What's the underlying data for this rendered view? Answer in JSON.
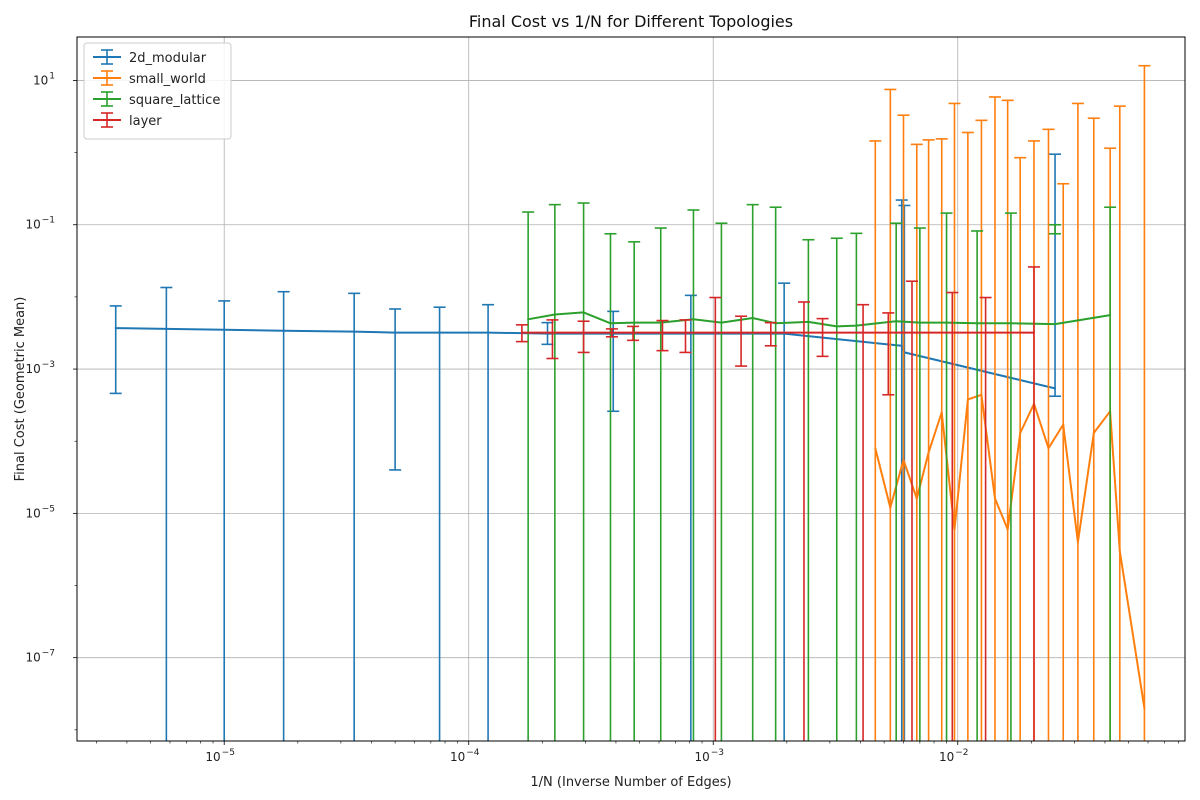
{
  "chart_data": {
    "type": "line",
    "title": "Final Cost vs 1/N for Different Topologies",
    "xlabel": "1/N (Inverse Number of Edges)",
    "ylabel": "Final Cost (Geometric Mean)",
    "xscale": "log",
    "yscale": "log",
    "xlim": [
      2.5e-06,
      0.085
    ],
    "ylim": [
      7e-09,
      40
    ],
    "grid": true,
    "legend_position": "top-left",
    "x_ticks": [
      {
        "value": 1e-05,
        "base": "10",
        "exp": "−5"
      },
      {
        "value": 0.0001,
        "base": "10",
        "exp": "−4"
      },
      {
        "value": 0.001,
        "base": "10",
        "exp": "−3"
      },
      {
        "value": 0.01,
        "base": "10",
        "exp": "−2"
      }
    ],
    "y_ticks": [
      {
        "value": 1e-07,
        "base": "10",
        "exp": "−7"
      },
      {
        "value": 1e-05,
        "base": "10",
        "exp": "−5"
      },
      {
        "value": 0.001,
        "base": "10",
        "exp": "−3"
      },
      {
        "value": 0.1,
        "base": "10",
        "exp": "−1"
      },
      {
        "value": 10,
        "base": "10",
        "exp": "1"
      }
    ],
    "series": [
      {
        "name": "2d_modular",
        "color": "#1f77b4",
        "points": [
          {
            "x": 3.6e-06,
            "y": 0.0037,
            "lo": 0.00046,
            "hi": 0.0075
          },
          {
            "x": 5.8e-06,
            "y": 0.0036,
            "lo": 5e-09,
            "hi": 0.0135
          },
          {
            "x": 1e-05,
            "y": 0.0035,
            "lo": 5e-09,
            "hi": 0.0088
          },
          {
            "x": 1.75e-05,
            "y": 0.0034,
            "lo": 5e-09,
            "hi": 0.0118
          },
          {
            "x": 3.4e-05,
            "y": 0.0033,
            "lo": 5e-09,
            "hi": 0.0112
          },
          {
            "x": 5e-05,
            "y": 0.0032,
            "lo": 4e-05,
            "hi": 0.0068
          },
          {
            "x": 7.6e-05,
            "y": 0.0032,
            "lo": 5e-09,
            "hi": 0.0072
          },
          {
            "x": 0.00012,
            "y": 0.0032,
            "lo": 5e-09,
            "hi": 0.0078
          },
          {
            "x": 0.00021,
            "y": 0.0031,
            "lo": 0.0022,
            "hi": 0.0044
          },
          {
            "x": 0.00039,
            "y": 0.0031,
            "lo": 0.00026,
            "hi": 0.0063
          },
          {
            "x": 0.00081,
            "y": 0.0031,
            "lo": 5e-09,
            "hi": 0.0105
          },
          {
            "x": 0.00195,
            "y": 0.0031,
            "lo": 5e-09,
            "hi": 0.0155
          },
          {
            "x": 0.0059,
            "y": 0.0021,
            "lo": 5e-09,
            "hi": 0.22
          },
          {
            "x": 0.00605,
            "y": 0.0017,
            "lo": 5e-09,
            "hi": 0.185
          },
          {
            "x": 0.025,
            "y": 0.00054,
            "lo": 0.00042,
            "hi": 0.95
          }
        ]
      },
      {
        "name": "small_world",
        "color": "#ff7f0e",
        "points": [
          {
            "x": 0.0046,
            "y": 8e-05,
            "lo": 5e-09,
            "hi": 1.45
          },
          {
            "x": 0.0053,
            "y": 1.2e-05,
            "lo": 5e-09,
            "hi": 7.5
          },
          {
            "x": 0.006,
            "y": 5.5e-05,
            "lo": 5e-09,
            "hi": 3.3
          },
          {
            "x": 0.0068,
            "y": 1.6e-05,
            "lo": 5e-09,
            "hi": 1.3
          },
          {
            "x": 0.0076,
            "y": 7e-05,
            "lo": 5e-09,
            "hi": 1.5
          },
          {
            "x": 0.0086,
            "y": 0.00025,
            "lo": 5e-09,
            "hi": 1.55
          },
          {
            "x": 0.0097,
            "y": 6e-06,
            "lo": 5e-09,
            "hi": 4.8
          },
          {
            "x": 0.011,
            "y": 0.00038,
            "lo": 5e-09,
            "hi": 1.9
          },
          {
            "x": 0.0125,
            "y": 0.00044,
            "lo": 5e-09,
            "hi": 2.8
          },
          {
            "x": 0.0142,
            "y": 1.6e-05,
            "lo": 5e-09,
            "hi": 5.9
          },
          {
            "x": 0.016,
            "y": 6e-06,
            "lo": 5e-09,
            "hi": 5.3
          },
          {
            "x": 0.018,
            "y": 0.00013,
            "lo": 5e-09,
            "hi": 0.85
          },
          {
            "x": 0.0205,
            "y": 0.00033,
            "lo": 5e-09,
            "hi": 1.45
          },
          {
            "x": 0.0235,
            "y": 8e-05,
            "lo": 5e-09,
            "hi": 2.1
          },
          {
            "x": 0.027,
            "y": 0.00017,
            "lo": 5e-09,
            "hi": 0.37
          },
          {
            "x": 0.031,
            "y": 4e-06,
            "lo": 5e-09,
            "hi": 4.8
          },
          {
            "x": 0.036,
            "y": 0.00013,
            "lo": 5e-09,
            "hi": 3.0
          },
          {
            "x": 0.042,
            "y": 0.00026,
            "lo": 5e-09,
            "hi": 1.15
          },
          {
            "x": 0.046,
            "y": 3e-06,
            "lo": 5e-09,
            "hi": 4.4
          },
          {
            "x": 0.058,
            "y": 2e-08,
            "lo": 5e-09,
            "hi": 16
          }
        ]
      },
      {
        "name": "square_lattice",
        "color": "#2ca02c",
        "points": [
          {
            "x": 0.000175,
            "y": 0.0049,
            "lo": 5e-09,
            "hi": 0.15
          },
          {
            "x": 0.000225,
            "y": 0.0057,
            "lo": 5e-09,
            "hi": 0.19
          },
          {
            "x": 0.000295,
            "y": 0.0061,
            "lo": 5e-09,
            "hi": 0.2
          },
          {
            "x": 0.00038,
            "y": 0.0043,
            "lo": 5e-09,
            "hi": 0.075
          },
          {
            "x": 0.000475,
            "y": 0.0044,
            "lo": 5e-09,
            "hi": 0.058
          },
          {
            "x": 0.00061,
            "y": 0.0044,
            "lo": 5e-09,
            "hi": 0.09
          },
          {
            "x": 0.00083,
            "y": 0.0049,
            "lo": 5e-09,
            "hi": 0.16
          },
          {
            "x": 0.00108,
            "y": 0.0044,
            "lo": 5e-09,
            "hi": 0.105
          },
          {
            "x": 0.00145,
            "y": 0.0051,
            "lo": 5e-09,
            "hi": 0.19
          },
          {
            "x": 0.0018,
            "y": 0.0043,
            "lo": 5e-09,
            "hi": 0.175
          },
          {
            "x": 0.00245,
            "y": 0.0045,
            "lo": 5e-09,
            "hi": 0.062
          },
          {
            "x": 0.0032,
            "y": 0.0039,
            "lo": 5e-09,
            "hi": 0.065
          },
          {
            "x": 0.00385,
            "y": 0.004,
            "lo": 5e-09,
            "hi": 0.076
          },
          {
            "x": 0.0056,
            "y": 0.0046,
            "lo": 5e-09,
            "hi": 0.105
          },
          {
            "x": 0.007,
            "y": 0.0044,
            "lo": 5e-09,
            "hi": 0.09
          },
          {
            "x": 0.009,
            "y": 0.0044,
            "lo": 5e-09,
            "hi": 0.145
          },
          {
            "x": 0.012,
            "y": 0.0043,
            "lo": 5e-09,
            "hi": 0.082
          },
          {
            "x": 0.0165,
            "y": 0.0043,
            "lo": 5e-09,
            "hi": 0.145
          },
          {
            "x": 0.025,
            "y": 0.0042,
            "lo": 0.075,
            "hi": 0.1
          },
          {
            "x": 0.042,
            "y": 0.0056,
            "lo": 5e-09,
            "hi": 0.175
          }
        ]
      },
      {
        "name": "layer",
        "color": "#d62728",
        "points": [
          {
            "x": 0.000165,
            "y": 0.0032,
            "lo": 0.0024,
            "hi": 0.0041
          },
          {
            "x": 0.00022,
            "y": 0.0032,
            "lo": 0.0014,
            "hi": 0.0048
          },
          {
            "x": 0.000295,
            "y": 0.0032,
            "lo": 0.0017,
            "hi": 0.0046
          },
          {
            "x": 0.000385,
            "y": 0.0032,
            "lo": 0.0028,
            "hi": 0.0036
          },
          {
            "x": 0.00047,
            "y": 0.0032,
            "lo": 0.0025,
            "hi": 0.0039
          },
          {
            "x": 0.00062,
            "y": 0.0032,
            "lo": 0.0018,
            "hi": 0.0047
          },
          {
            "x": 0.00077,
            "y": 0.0032,
            "lo": 0.0017,
            "hi": 0.0048
          },
          {
            "x": 0.00102,
            "y": 0.0032,
            "lo": 5e-09,
            "hi": 0.0098
          },
          {
            "x": 0.0013,
            "y": 0.0032,
            "lo": 0.0011,
            "hi": 0.0054
          },
          {
            "x": 0.00172,
            "y": 0.0032,
            "lo": 0.0021,
            "hi": 0.0044
          },
          {
            "x": 0.00235,
            "y": 0.0032,
            "lo": 5e-09,
            "hi": 0.0085
          },
          {
            "x": 0.0028,
            "y": 0.0032,
            "lo": 0.0015,
            "hi": 0.005
          },
          {
            "x": 0.0041,
            "y": 0.0032,
            "lo": 5e-09,
            "hi": 0.0078
          },
          {
            "x": 0.0052,
            "y": 0.0032,
            "lo": 0.00044,
            "hi": 0.006
          },
          {
            "x": 0.0065,
            "y": 0.0032,
            "lo": 5e-09,
            "hi": 0.0165
          },
          {
            "x": 0.0095,
            "y": 0.0032,
            "lo": 5e-09,
            "hi": 0.0115
          },
          {
            "x": 0.013,
            "y": 0.0032,
            "lo": 5e-09,
            "hi": 0.0098
          },
          {
            "x": 0.0205,
            "y": 0.0032,
            "lo": 5e-09,
            "hi": 0.026
          }
        ]
      }
    ]
  }
}
